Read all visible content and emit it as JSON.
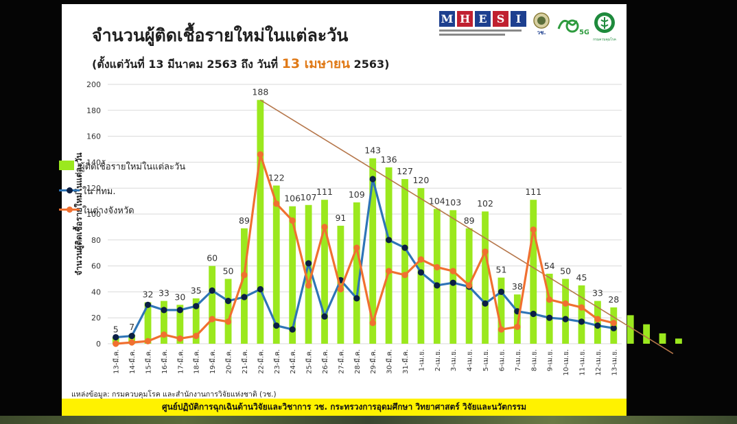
{
  "title": "จำนวนผู้ติดเชื้อรายใหม่ในแต่ละวัน",
  "subtitle": {
    "prefix": "(ตั้งแต่วันที่ 13 มีนาคม 2563 ถึง วันที่ ",
    "highlight": "13 เมษายน",
    "suffix": " 2563)"
  },
  "logos": {
    "mhesi_letters": [
      "M",
      "H",
      "E",
      "S",
      "I"
    ],
    "mhesi_colors": [
      "#1d3f8f",
      "#c02030",
      "#1d3f8f",
      "#c02030",
      "#1d3f8f"
    ],
    "nrct_text": "วช.",
    "fiveg_text": "5G",
    "moph_text": "กรมควบคุมโรค"
  },
  "source_note": "แหล่งข้อมูล: กรมควบคุมโรค และสำนักงานการวิจัยแห่งชาติ (วช.)",
  "footer": "ศูนย์ปฏิบัติการฉุกเฉินด้านวิจัยและวิชาการ   วช.  กระทรวงการอุดมศึกษา วิทยาศาสตร์ วิจัยและนวัตกรรม",
  "colors": {
    "bar": "#9be81e",
    "bangkok": "#2e75b6",
    "bangkok_marker": "#0b1f44",
    "provinces": "#f07030",
    "trend": "#b5764a",
    "highlight": "#e07a18"
  },
  "chart_data": {
    "type": "bar",
    "title": "จำนวนผู้ติดเชื้อรายใหม่ในแต่ละวัน",
    "ylabel": "จำนวนผู้ติดเชื้อรายใหม่ในแต่ละวัน",
    "xlabel": "",
    "ylim": [
      0,
      200
    ],
    "yticks": [
      0,
      20,
      40,
      60,
      80,
      100,
      120,
      140,
      160,
      180,
      200
    ],
    "grid": true,
    "legend_position": "left",
    "categories": [
      "13-มี.ค.",
      "14-มี.ค.",
      "15-มี.ค.",
      "16-มี.ค.",
      "17-มี.ค.",
      "18-มี.ค.",
      "19-มี.ค.",
      "20-มี.ค.",
      "21-มี.ค.",
      "22-มี.ค.",
      "23-มี.ค.",
      "24-มี.ค.",
      "25-มี.ค.",
      "26-มี.ค.",
      "27-มี.ค.",
      "28-มี.ค.",
      "29-มี.ค.",
      "30-มี.ค.",
      "31-มี.ค.",
      "1-เม.ย.",
      "2-เม.ย.",
      "3-เม.ย.",
      "4-เม.ย.",
      "5-เม.ย.",
      "6-เม.ย.",
      "7-เม.ย.",
      "8-เม.ย.",
      "9-เม.ย.",
      "10-เม.ย.",
      "11-เม.ย.",
      "12-เม.ย.",
      "13-เม.ย."
    ],
    "series": [
      {
        "name": "ผู้ติดเชื้อรายใหม่ในแต่ละวัน",
        "type": "bar",
        "values": [
          5,
          7,
          32,
          33,
          30,
          35,
          60,
          50,
          89,
          188,
          122,
          106,
          107,
          111,
          91,
          109,
          143,
          136,
          127,
          120,
          104,
          103,
          89,
          102,
          51,
          38,
          111,
          54,
          50,
          45,
          33,
          28
        ]
      },
      {
        "name": "ใน กทม.",
        "type": "line",
        "values": [
          5,
          6,
          30,
          26,
          26,
          29,
          41,
          33,
          36,
          42,
          14,
          11,
          62,
          21,
          49,
          35,
          127,
          80,
          74,
          55,
          45,
          47,
          44,
          31,
          40,
          25,
          23,
          20,
          19,
          17,
          14,
          12
        ]
      },
      {
        "name": "ในต่างจังหวัด",
        "type": "line",
        "values": [
          0,
          1,
          2,
          7,
          4,
          6,
          19,
          17,
          53,
          146,
          108,
          95,
          45,
          90,
          42,
          74,
          16,
          56,
          53,
          65,
          59,
          56,
          45,
          71,
          11,
          13,
          88,
          34,
          31,
          28,
          19,
          16
        ]
      }
    ],
    "trend_line": {
      "from": {
        "x": "22-มี.ค.",
        "y": 188
      },
      "to_beyond_last": 2.7
    }
  }
}
